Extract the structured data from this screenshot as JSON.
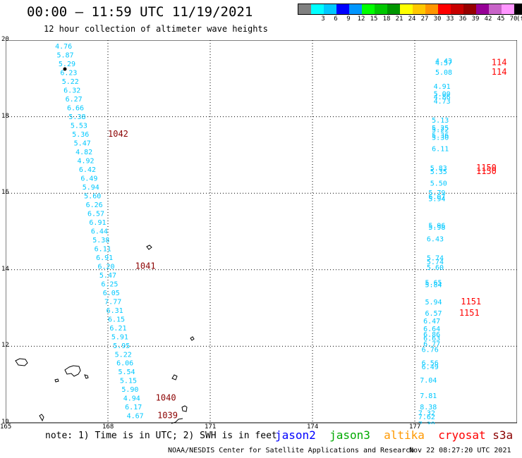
{
  "title": "00:00 – 11:59 UTC 11/19/2021",
  "subtitle": "12 hour collection of altimeter wave heights",
  "colorbar": {
    "colors": [
      "#808080",
      "#00ffff",
      "#00c8ff",
      "#0000ff",
      "#0096ff",
      "#00ff00",
      "#00c800",
      "#009600",
      "#ffff00",
      "#ffc800",
      "#ff9600",
      "#ff0000",
      "#c80000",
      "#960000",
      "#960096",
      "#c864c8",
      "#ff96ff",
      "#000000"
    ],
    "labels": [
      "",
      "3",
      "6",
      "9",
      "12",
      "15",
      "18",
      "21",
      "24",
      "27",
      "30",
      "33",
      "36",
      "39",
      "42",
      "45",
      "70",
      "(ft)"
    ]
  },
  "map": {
    "lon_range": [
      165,
      180
    ],
    "lat_range": [
      10,
      20
    ],
    "lon_ticks": [
      "165",
      "168",
      "171",
      "174",
      "177"
    ],
    "lat_ticks": [
      "20",
      "18",
      "16",
      "14",
      "12",
      "10"
    ],
    "lat_tick_values": [
      20,
      18,
      16,
      14,
      12,
      10
    ],
    "lon_tick_values": [
      165,
      168,
      171,
      174,
      177
    ],
    "track1": [
      {
        "lat": 19.85,
        "lon": 166.45,
        "v": "4.76"
      },
      {
        "lat": 19.62,
        "lon": 166.5,
        "v": "5.87"
      },
      {
        "lat": 19.39,
        "lon": 166.55,
        "v": "5.29"
      },
      {
        "lat": 19.16,
        "lon": 166.6,
        "v": "6.23"
      },
      {
        "lat": 18.93,
        "lon": 166.65,
        "v": "5.22"
      },
      {
        "lat": 18.7,
        "lon": 166.7,
        "v": "6.32"
      },
      {
        "lat": 18.47,
        "lon": 166.75,
        "v": "6.27"
      },
      {
        "lat": 18.24,
        "lon": 166.8,
        "v": "6.66"
      },
      {
        "lat": 18.01,
        "lon": 166.85,
        "v": "5.38"
      },
      {
        "lat": 17.78,
        "lon": 166.9,
        "v": "5.53"
      },
      {
        "lat": 17.55,
        "lon": 166.95,
        "v": "5.36"
      },
      {
        "lat": 17.32,
        "lon": 167.0,
        "v": "5.47"
      },
      {
        "lat": 17.09,
        "lon": 167.05,
        "v": "4.82"
      },
      {
        "lat": 16.86,
        "lon": 167.1,
        "v": "4.92"
      },
      {
        "lat": 16.63,
        "lon": 167.15,
        "v": "6.42"
      },
      {
        "lat": 16.4,
        "lon": 167.2,
        "v": "6.49"
      },
      {
        "lat": 16.17,
        "lon": 167.25,
        "v": "5.94"
      },
      {
        "lat": 15.94,
        "lon": 167.3,
        "v": "5.60"
      },
      {
        "lat": 15.71,
        "lon": 167.35,
        "v": "6.26"
      },
      {
        "lat": 15.48,
        "lon": 167.4,
        "v": "6.57"
      },
      {
        "lat": 15.25,
        "lon": 167.45,
        "v": "6.91"
      },
      {
        "lat": 15.02,
        "lon": 167.5,
        "v": "6.44"
      },
      {
        "lat": 14.79,
        "lon": 167.55,
        "v": "5.38"
      },
      {
        "lat": 14.56,
        "lon": 167.6,
        "v": "6.11"
      },
      {
        "lat": 14.33,
        "lon": 167.65,
        "v": "6.91"
      },
      {
        "lat": 14.1,
        "lon": 167.7,
        "v": "6.20"
      },
      {
        "lat": 13.87,
        "lon": 167.75,
        "v": "5.47"
      },
      {
        "lat": 13.64,
        "lon": 167.8,
        "v": "6.25"
      },
      {
        "lat": 13.41,
        "lon": 167.85,
        "v": "6.05"
      },
      {
        "lat": 13.18,
        "lon": 167.9,
        "v": "7.77"
      },
      {
        "lat": 12.95,
        "lon": 167.95,
        "v": "6.31"
      },
      {
        "lat": 12.72,
        "lon": 168.0,
        "v": "6.15"
      },
      {
        "lat": 12.49,
        "lon": 168.05,
        "v": "6.21"
      },
      {
        "lat": 12.26,
        "lon": 168.1,
        "v": "5.91"
      },
      {
        "lat": 12.03,
        "lon": 168.15,
        "v": "5.95"
      },
      {
        "lat": 11.8,
        "lon": 168.2,
        "v": "5.22"
      },
      {
        "lat": 11.57,
        "lon": 168.25,
        "v": "6.06"
      },
      {
        "lat": 11.34,
        "lon": 168.3,
        "v": "5.54"
      },
      {
        "lat": 11.11,
        "lon": 168.35,
        "v": "5.15"
      },
      {
        "lat": 10.88,
        "lon": 168.4,
        "v": "5.90"
      },
      {
        "lat": 10.65,
        "lon": 168.45,
        "v": "4.94"
      },
      {
        "lat": 10.42,
        "lon": 168.5,
        "v": "6.17"
      },
      {
        "lat": 10.19,
        "lon": 168.55,
        "v": "4.67"
      }
    ],
    "track2": [
      {
        "lat": 19.47,
        "lon": 177.6,
        "v": "4.43"
      },
      {
        "lat": 19.42,
        "lon": 177.6,
        "v": "4.57"
      },
      {
        "lat": 19.17,
        "lon": 177.6,
        "v": "5.08"
      },
      {
        "lat": 18.8,
        "lon": 177.55,
        "v": "4.91"
      },
      {
        "lat": 18.61,
        "lon": 177.55,
        "v": "5.00"
      },
      {
        "lat": 18.53,
        "lon": 177.55,
        "v": "4.86"
      },
      {
        "lat": 18.42,
        "lon": 177.55,
        "v": "4.73"
      },
      {
        "lat": 17.92,
        "lon": 177.5,
        "v": "5.13"
      },
      {
        "lat": 17.72,
        "lon": 177.5,
        "v": "5.25"
      },
      {
        "lat": 17.67,
        "lon": 177.5,
        "v": "5.22"
      },
      {
        "lat": 17.52,
        "lon": 177.5,
        "v": "5.36"
      },
      {
        "lat": 17.47,
        "lon": 177.5,
        "v": "5.30"
      },
      {
        "lat": 17.17,
        "lon": 177.5,
        "v": "6.11"
      },
      {
        "lat": 16.67,
        "lon": 177.45,
        "v": "5.83"
      },
      {
        "lat": 16.57,
        "lon": 177.45,
        "v": "5.35"
      },
      {
        "lat": 16.27,
        "lon": 177.45,
        "v": "5.50"
      },
      {
        "lat": 16.02,
        "lon": 177.4,
        "v": "5.79"
      },
      {
        "lat": 15.92,
        "lon": 177.4,
        "v": "6.07"
      },
      {
        "lat": 15.87,
        "lon": 177.4,
        "v": "5.94"
      },
      {
        "lat": 15.17,
        "lon": 177.4,
        "v": "5.96"
      },
      {
        "lat": 15.12,
        "lon": 177.4,
        "v": "5.98"
      },
      {
        "lat": 14.82,
        "lon": 177.35,
        "v": "6.43"
      },
      {
        "lat": 14.32,
        "lon": 177.35,
        "v": "5.74"
      },
      {
        "lat": 14.22,
        "lon": 177.35,
        "v": "5.74"
      },
      {
        "lat": 14.07,
        "lon": 177.35,
        "v": "5.60"
      },
      {
        "lat": 13.67,
        "lon": 177.3,
        "v": "5.65"
      },
      {
        "lat": 13.62,
        "lon": 177.3,
        "v": "5.84"
      },
      {
        "lat": 13.17,
        "lon": 177.3,
        "v": "5.94"
      },
      {
        "lat": 12.87,
        "lon": 177.3,
        "v": "6.57"
      },
      {
        "lat": 12.67,
        "lon": 177.25,
        "v": "6.47"
      },
      {
        "lat": 12.47,
        "lon": 177.25,
        "v": "6.64"
      },
      {
        "lat": 12.32,
        "lon": 177.25,
        "v": "6.86"
      },
      {
        "lat": 12.22,
        "lon": 177.25,
        "v": "6.63"
      },
      {
        "lat": 12.07,
        "lon": 177.25,
        "v": "6.77"
      },
      {
        "lat": 11.92,
        "lon": 177.2,
        "v": "6.76"
      },
      {
        "lat": 11.57,
        "lon": 177.2,
        "v": "6.56"
      },
      {
        "lat": 11.47,
        "lon": 177.2,
        "v": "6.49"
      },
      {
        "lat": 11.12,
        "lon": 177.15,
        "v": "7.04"
      },
      {
        "lat": 10.72,
        "lon": 177.15,
        "v": "7.81"
      },
      {
        "lat": 10.42,
        "lon": 177.15,
        "v": "8.38"
      },
      {
        "lat": 10.27,
        "lon": 177.1,
        "v": "7.32"
      },
      {
        "lat": 10.17,
        "lon": 177.1,
        "v": "7.62"
      },
      {
        "lat": 9.97,
        "lon": 177.1,
        "v": "7.39"
      }
    ],
    "orbits": [
      {
        "lat": 17.55,
        "lon": 168.0,
        "v": "1042",
        "color": "#8b0000"
      },
      {
        "lat": 14.1,
        "lon": 168.8,
        "v": "1041",
        "color": "#8b0000"
      },
      {
        "lat": 10.65,
        "lon": 169.4,
        "v": "1040",
        "color": "#8b0000"
      },
      {
        "lat": 10.19,
        "lon": 169.45,
        "v": "1039",
        "color": "#8b0000"
      },
      {
        "lat": 19.42,
        "lon": 179.25,
        "v": "114",
        "color": "#ff0000"
      },
      {
        "lat": 19.17,
        "lon": 179.25,
        "v": "114",
        "color": "#ff0000"
      },
      {
        "lat": 16.67,
        "lon": 178.8,
        "v": "1150",
        "color": "#ff0000"
      },
      {
        "lat": 16.57,
        "lon": 178.8,
        "v": "1150",
        "color": "#ff0000"
      },
      {
        "lat": 13.17,
        "lon": 178.35,
        "v": "1151",
        "color": "#ff0000"
      },
      {
        "lat": 12.87,
        "lon": 178.3,
        "v": "1151",
        "color": "#ff0000"
      }
    ]
  },
  "note": "note: 1) Time is in UTC; 2) SWH is in feet",
  "legend": [
    {
      "name": "jason2",
      "color": "#0000ff"
    },
    {
      "name": "jason3",
      "color": "#00aa00"
    },
    {
      "name": "altika",
      "color": "#ff9900"
    },
    {
      "name": "cryosat",
      "color": "#ff0000"
    },
    {
      "name": "s3a",
      "color": "#8b0000"
    }
  ],
  "credit": "NOAA/NESDIS Center for Satellite Applications and Research",
  "timestamp": "Nov 22 08:27:20 UTC 2021"
}
